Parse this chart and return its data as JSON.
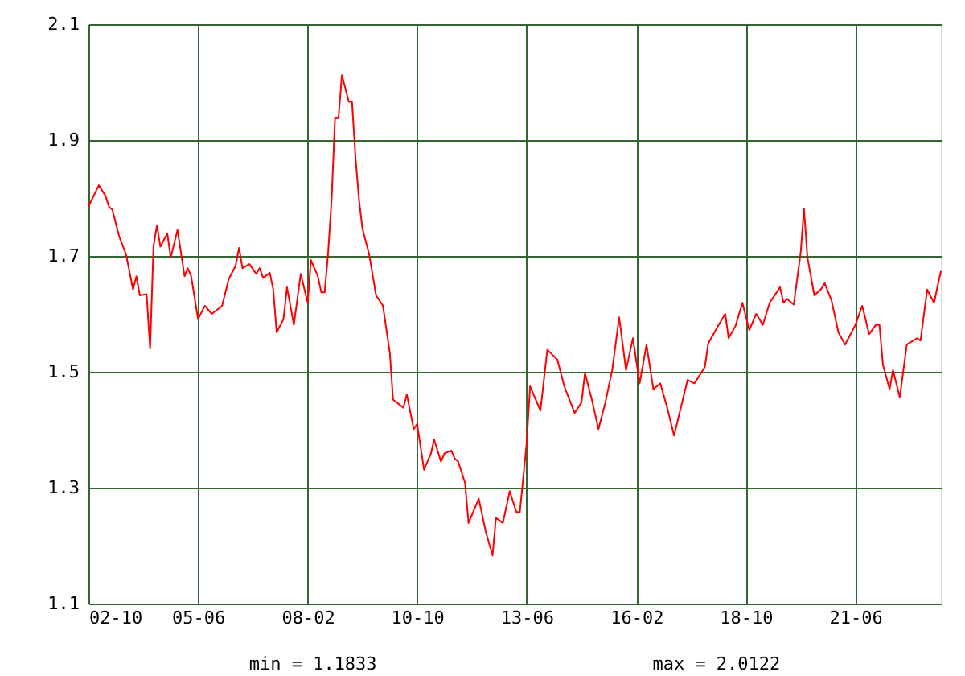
{
  "chart_data": {
    "type": "line",
    "x": [
      "2002-10",
      "2003-01",
      "2003-03",
      "2003-04",
      "2003-05",
      "2003-07",
      "2003-09",
      "2003-11",
      "2003-12",
      "2004-01",
      "2004-03",
      "2004-04",
      "2004-05",
      "2004-06",
      "2004-07",
      "2004-09",
      "2004-10",
      "2004-12",
      "2005-02",
      "2005-03",
      "2005-04",
      "2005-06",
      "2005-08",
      "2005-10",
      "2006-01",
      "2006-03",
      "2006-05",
      "2006-06",
      "2006-07",
      "2006-09",
      "2006-11",
      "2006-12",
      "2007-01",
      "2007-03",
      "2007-04",
      "2007-05",
      "2007-07",
      "2007-08",
      "2007-10",
      "2007-12",
      "2008-02",
      "2008-03",
      "2008-05",
      "2008-06",
      "2008-07",
      "2008-08",
      "2008-09",
      "2008-10",
      "2008-11",
      "2008-12",
      "2009-02",
      "2009-03",
      "2009-04",
      "2009-05",
      "2009-06",
      "2009-08",
      "2009-10",
      "2009-12",
      "2010-02",
      "2010-03",
      "2010-06",
      "2010-07",
      "2010-09",
      "2010-10",
      "2010-12",
      "2011-02",
      "2011-03",
      "2011-05",
      "2011-06",
      "2011-08",
      "2011-09",
      "2011-10",
      "2011-12",
      "2012-01",
      "2012-04",
      "2012-06",
      "2012-08",
      "2012-09",
      "2012-11",
      "2013-01",
      "2013-03",
      "2013-04",
      "2013-06",
      "2013-07",
      "2013-10",
      "2013-12",
      "2014-03",
      "2014-05",
      "2014-08",
      "2014-10",
      "2014-11",
      "2015-01",
      "2015-03",
      "2015-05",
      "2015-07",
      "2015-09",
      "2015-11",
      "2016-01",
      "2016-03",
      "2016-05",
      "2016-07",
      "2016-09",
      "2016-11",
      "2017-01",
      "2017-05",
      "2017-07",
      "2017-10",
      "2017-11",
      "2018-02",
      "2018-04",
      "2018-05",
      "2018-07",
      "2018-09",
      "2018-11",
      "2019-01",
      "2019-03",
      "2019-05",
      "2019-08",
      "2019-09",
      "2019-10",
      "2019-12",
      "2020-02",
      "2020-03",
      "2020-04",
      "2020-06",
      "2020-08",
      "2020-09",
      "2020-11",
      "2021-01",
      "2021-03",
      "2021-06",
      "2021-08",
      "2021-10",
      "2021-12",
      "2022-01",
      "2022-02",
      "2022-04",
      "2022-05",
      "2022-07",
      "2022-09",
      "2022-12",
      "2023-01",
      "2023-03",
      "2023-05",
      "2023-07"
    ],
    "series": [
      {
        "color": "#ff0000",
        "values": [
          1.785,
          1.822,
          1.804,
          1.785,
          1.78,
          1.734,
          1.702,
          1.642,
          1.665,
          1.632,
          1.634,
          1.54,
          1.716,
          1.753,
          1.716,
          1.739,
          1.697,
          1.745,
          1.665,
          1.679,
          1.665,
          1.591,
          1.614,
          1.6,
          1.614,
          1.66,
          1.683,
          1.714,
          1.679,
          1.686,
          1.669,
          1.679,
          1.662,
          1.671,
          1.642,
          1.568,
          1.591,
          1.646,
          1.581,
          1.669,
          1.619,
          1.693,
          1.665,
          1.637,
          1.637,
          1.706,
          1.799,
          1.938,
          1.938,
          2.012,
          1.966,
          1.966,
          1.87,
          1.799,
          1.748,
          1.702,
          1.632,
          1.614,
          1.531,
          1.452,
          1.438,
          1.461,
          1.401,
          1.41,
          1.331,
          1.359,
          1.383,
          1.345,
          1.359,
          1.364,
          1.35,
          1.345,
          1.308,
          1.239,
          1.281,
          1.225,
          1.183,
          1.248,
          1.239,
          1.294,
          1.258,
          1.258,
          1.378,
          1.475,
          1.433,
          1.538,
          1.521,
          1.475,
          1.429,
          1.447,
          1.498,
          1.452,
          1.401,
          1.447,
          1.503,
          1.594,
          1.503,
          1.558,
          1.48,
          1.547,
          1.47,
          1.48,
          1.438,
          1.39,
          1.486,
          1.48,
          1.508,
          1.549,
          1.581,
          1.6,
          1.558,
          1.579,
          1.619,
          1.572,
          1.6,
          1.581,
          1.619,
          1.646,
          1.619,
          1.626,
          1.616,
          1.706,
          1.782,
          1.697,
          1.632,
          1.643,
          1.653,
          1.623,
          1.568,
          1.547,
          1.581,
          1.614,
          1.565,
          1.581,
          1.581,
          1.512,
          1.47,
          1.503,
          1.456,
          1.547,
          1.558,
          1.554,
          1.642,
          1.619,
          1.674
        ]
      }
    ],
    "xlim": [
      "2002-10",
      "2023-07"
    ],
    "xticks": [
      {
        "value": "2002-10",
        "label": "02-10"
      },
      {
        "value": "2005-06",
        "label": "05-06"
      },
      {
        "value": "2008-02",
        "label": "08-02"
      },
      {
        "value": "2010-10",
        "label": "10-10"
      },
      {
        "value": "2013-06",
        "label": "13-06"
      },
      {
        "value": "2016-02",
        "label": "16-02"
      },
      {
        "value": "2018-10",
        "label": "18-10"
      },
      {
        "value": "2021-06",
        "label": "21-06"
      }
    ],
    "ylim": [
      1.1,
      2.1
    ],
    "yticks": [
      1.1,
      1.3,
      1.5,
      1.7,
      1.9,
      2.1
    ],
    "grid": true,
    "marker": "none",
    "line_style": "solid",
    "annotations": [
      "min = 1.1833",
      "max = 2.0122"
    ]
  }
}
